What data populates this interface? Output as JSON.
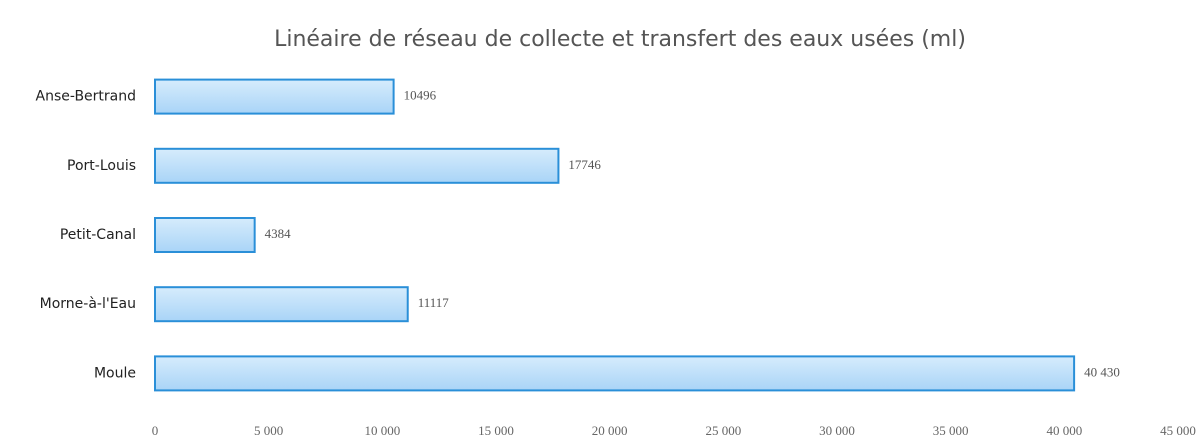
{
  "chart_data": {
    "type": "barh",
    "title": "Linéaire de réseau de collecte et transfert  des eaux usées (ml)",
    "categories": [
      "Anse-Bertrand",
      "Port-Louis",
      "Petit-Canal",
      "Morne-à-l'Eau",
      "Moule"
    ],
    "values": [
      10496,
      17746,
      4384,
      11117,
      40430
    ],
    "value_labels": [
      "10496",
      "17746",
      "4384",
      "11117",
      "40 430"
    ],
    "color": "#bfe0fa",
    "edge_color": "#2a8fd8",
    "xlim": [
      0,
      45000
    ],
    "xticks": [
      0,
      {
        "value": 5000,
        "label": "5 000"
      },
      {
        "value": 10000,
        "label": "10 000"
      },
      {
        "value": 15000,
        "label": "15 000"
      },
      {
        "value": 20000,
        "label": "20 000"
      },
      {
        "value": 25000,
        "label": "25 000"
      },
      {
        "value": 30000,
        "label": "30 000"
      },
      {
        "value": 35000,
        "label": "35 000"
      },
      {
        "value": 40000,
        "label": "40 000"
      },
      {
        "value": 45000,
        "label": "45 000"
      }
    ],
    "grid": false
  }
}
